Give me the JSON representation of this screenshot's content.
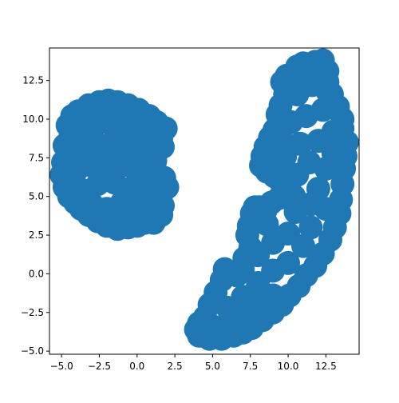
{
  "chart_data": {
    "type": "scatter",
    "title": "",
    "xlabel": "",
    "ylabel": "",
    "xlim": [
      -5.8,
      14.7
    ],
    "ylim": [
      -5.2,
      14.6
    ],
    "xticks": [
      -5.0,
      -2.5,
      0.0,
      2.5,
      5.0,
      7.5,
      10.0,
      12.5
    ],
    "xtick_labels": [
      "−5.0",
      "−2.5",
      "0.0",
      "2.5",
      "5.0",
      "7.5",
      "10.0",
      "12.5"
    ],
    "yticks": [
      -5.0,
      -2.5,
      0.0,
      2.5,
      5.0,
      7.5,
      10.0,
      12.5
    ],
    "ytick_labels": [
      "−5.0",
      "−2.5",
      "0.0",
      "2.5",
      "5.0",
      "7.5",
      "10.0",
      "12.5"
    ],
    "grid": false,
    "marker_color": "#1f77b4",
    "series": [
      {
        "points": [
          [
            -4.8,
            8.3
          ],
          [
            -4.6,
            9.6
          ],
          [
            -4.3,
            10.2
          ],
          [
            -3.9,
            10.5
          ],
          [
            -3.2,
            10.9
          ],
          [
            -2.5,
            11.1
          ],
          [
            -1.9,
            11.2
          ],
          [
            -1.3,
            11.1
          ],
          [
            -0.6,
            10.9
          ],
          [
            0.1,
            10.6
          ],
          [
            0.8,
            10.2
          ],
          [
            1.3,
            9.8
          ],
          [
            1.9,
            9.4
          ],
          [
            -4.9,
            7.2
          ],
          [
            -5.0,
            6.4
          ],
          [
            -4.8,
            5.6
          ],
          [
            -4.5,
            5.0
          ],
          [
            -4.1,
            4.6
          ],
          [
            -3.7,
            4.2
          ],
          [
            -3.2,
            3.8
          ],
          [
            -2.6,
            3.4
          ],
          [
            -2.0,
            3.1
          ],
          [
            -1.3,
            2.9
          ],
          [
            -0.6,
            3.0
          ],
          [
            0.0,
            3.1
          ],
          [
            0.5,
            3.3
          ],
          [
            1.1,
            3.3
          ],
          [
            1.6,
            3.8
          ],
          [
            1.7,
            4.4
          ],
          [
            1.6,
            5.1
          ],
          [
            2.0,
            5.6
          ],
          [
            1.8,
            6.2
          ],
          [
            1.4,
            6.4
          ],
          [
            1.2,
            7.3
          ],
          [
            0.7,
            7.1
          ],
          [
            0.3,
            7.8
          ],
          [
            1.7,
            8.2
          ],
          [
            1.6,
            8.8
          ],
          [
            -3.9,
            9.5
          ],
          [
            -3.0,
            9.0
          ],
          [
            -2.0,
            9.8
          ],
          [
            -1.0,
            9.6
          ],
          [
            0.0,
            9.4
          ],
          [
            -3.8,
            8.0
          ],
          [
            -2.8,
            8.3
          ],
          [
            -1.6,
            8.5
          ],
          [
            -0.5,
            8.2
          ],
          [
            0.5,
            8.6
          ],
          [
            -4.0,
            6.7
          ],
          [
            -3.0,
            7.0
          ],
          [
            -2.0,
            7.3
          ],
          [
            -1.0,
            7.0
          ],
          [
            0.0,
            6.6
          ],
          [
            -3.6,
            5.4
          ],
          [
            -2.6,
            5.8
          ],
          [
            -1.5,
            5.9
          ],
          [
            -0.5,
            5.5
          ],
          [
            0.6,
            5.7
          ],
          [
            -3.0,
            4.5
          ],
          [
            -2.0,
            4.2
          ],
          [
            -1.0,
            4.6
          ],
          [
            0.0,
            4.3
          ],
          [
            0.9,
            4.5
          ],
          [
            -2.2,
            3.6
          ],
          [
            -1.2,
            3.7
          ],
          [
            0.4,
            3.9
          ],
          [
            -3.4,
            10.0
          ],
          [
            -2.4,
            10.4
          ],
          [
            -1.4,
            10.5
          ],
          [
            -0.4,
            10.3
          ],
          [
            0.6,
            9.9
          ],
          [
            1.2,
            9.0
          ],
          [
            -4.4,
            9.0
          ],
          [
            -4.6,
            7.7
          ],
          [
            -4.4,
            6.0
          ],
          [
            -1.8,
            6.5
          ],
          [
            -0.8,
            7.9
          ],
          [
            0.9,
            6.5
          ],
          [
            4.1,
            -4.0
          ],
          [
            4.8,
            -4.2
          ],
          [
            5.6,
            -4.2
          ],
          [
            6.4,
            -4.0
          ],
          [
            7.0,
            -3.8
          ],
          [
            7.6,
            -3.5
          ],
          [
            8.3,
            -3.0
          ],
          [
            9.0,
            -2.5
          ],
          [
            9.6,
            -2.0
          ],
          [
            10.1,
            -1.4
          ],
          [
            10.7,
            -0.8
          ],
          [
            11.2,
            -0.1
          ],
          [
            11.8,
            0.5
          ],
          [
            12.3,
            1.3
          ],
          [
            12.8,
            2.2
          ],
          [
            13.1,
            3.0
          ],
          [
            13.4,
            3.9
          ],
          [
            13.5,
            4.8
          ],
          [
            13.6,
            5.8
          ],
          [
            13.7,
            6.8
          ],
          [
            13.8,
            7.6
          ],
          [
            13.9,
            8.5
          ],
          [
            13.6,
            9.4
          ],
          [
            13.6,
            10.0
          ],
          [
            13.3,
            10.8
          ],
          [
            12.9,
            11.6
          ],
          [
            12.6,
            12.4
          ],
          [
            12.6,
            13.1
          ],
          [
            12.3,
            13.8
          ],
          [
            11.8,
            13.7
          ],
          [
            11.0,
            13.6
          ],
          [
            10.6,
            13.4
          ],
          [
            9.9,
            12.8
          ],
          [
            9.6,
            12.4
          ],
          [
            9.8,
            11.6
          ],
          [
            9.5,
            10.9
          ],
          [
            9.3,
            10.3
          ],
          [
            9.5,
            9.7
          ],
          [
            9.1,
            9.3
          ],
          [
            8.8,
            8.8
          ],
          [
            8.5,
            8.2
          ],
          [
            8.3,
            7.6
          ],
          [
            8.2,
            7.0
          ],
          [
            8.6,
            6.6
          ],
          [
            9.1,
            6.3
          ],
          [
            9.6,
            5.8
          ],
          [
            9.8,
            5.2
          ],
          [
            9.4,
            4.9
          ],
          [
            8.9,
            4.6
          ],
          [
            8.5,
            4.1
          ],
          [
            8.1,
            4.3
          ],
          [
            7.8,
            4.3
          ],
          [
            7.6,
            3.9
          ],
          [
            7.4,
            3.1
          ],
          [
            7.3,
            2.5
          ],
          [
            7.5,
            1.7
          ],
          [
            7.1,
            1.0
          ],
          [
            7.0,
            0.3
          ],
          [
            6.6,
            -0.1
          ],
          [
            6.2,
            0.1
          ],
          [
            5.8,
            0.3
          ],
          [
            5.6,
            -0.4
          ],
          [
            5.2,
            -1.2
          ],
          [
            4.8,
            -2.0
          ],
          [
            4.5,
            -2.8
          ],
          [
            4.1,
            -3.2
          ],
          [
            3.9,
            -3.6
          ],
          [
            5.0,
            -3.4
          ],
          [
            6.0,
            -3.2
          ],
          [
            7.0,
            -2.8
          ],
          [
            8.0,
            -2.0
          ],
          [
            9.0,
            -1.4
          ],
          [
            6.0,
            -2.2
          ],
          [
            7.0,
            -1.5
          ],
          [
            8.0,
            -0.6
          ],
          [
            9.0,
            0.2
          ],
          [
            10.0,
            0.7
          ],
          [
            8.0,
            1.2
          ],
          [
            9.0,
            2.0
          ],
          [
            10.0,
            2.6
          ],
          [
            11.0,
            1.8
          ],
          [
            11.5,
            3.0
          ],
          [
            10.5,
            4.0
          ],
          [
            11.5,
            4.5
          ],
          [
            12.5,
            4.2
          ],
          [
            12.0,
            5.5
          ],
          [
            10.6,
            6.4
          ],
          [
            11.4,
            7.2
          ],
          [
            12.5,
            6.8
          ],
          [
            13.0,
            7.8
          ],
          [
            9.8,
            7.6
          ],
          [
            10.8,
            8.4
          ],
          [
            12.0,
            8.6
          ],
          [
            13.0,
            9.2
          ],
          [
            10.2,
            9.8
          ],
          [
            11.2,
            10.2
          ],
          [
            12.3,
            10.6
          ],
          [
            10.6,
            11.6
          ],
          [
            11.6,
            12.2
          ],
          [
            12.6,
            11.8
          ],
          [
            11.0,
            13.0
          ],
          [
            12.0,
            13.2
          ],
          [
            9.0,
            7.4
          ],
          [
            9.6,
            8.6
          ],
          [
            10.0,
            6.2
          ],
          [
            10.4,
            5.0
          ],
          [
            8.6,
            3.2
          ],
          [
            7.8,
            -1.2
          ]
        ]
      }
    ]
  }
}
